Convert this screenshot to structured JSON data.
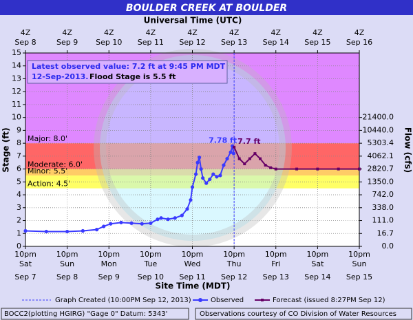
{
  "chart_data": {
    "type": "line",
    "title": "BOULDER CREEK AT BOULDER",
    "top_axis_label": "Universal Time (UTC)",
    "xlabel": "Site Time (MDT)",
    "ylabel": "Stage (ft)",
    "y2label": "Flow (cfs)",
    "xlim": [
      "2013-09-07T22:00",
      "2013-09-15T22:00"
    ],
    "ylim": [
      0,
      15
    ],
    "yticks": [
      0,
      1,
      2,
      3,
      4,
      5,
      6,
      7,
      8,
      9,
      10,
      11,
      12,
      13,
      14,
      15
    ],
    "y2ticks": [
      {
        "value": 0,
        "label": "0.0"
      },
      {
        "value": 1,
        "label": "16.7"
      },
      {
        "value": 2,
        "label": "111.0"
      },
      {
        "value": 3,
        "label": "338.0"
      },
      {
        "value": 4,
        "label": "742.0"
      },
      {
        "value": 5,
        "label": "1350.0"
      },
      {
        "value": 6,
        "label": "2820.7"
      },
      {
        "value": 7,
        "label": "4062.1"
      },
      {
        "value": 8,
        "label": "5303.4"
      },
      {
        "value": 9,
        "label": "10440.0"
      },
      {
        "value": 10,
        "label": "21400.0"
      }
    ],
    "xticks": [
      {
        "value": "2013-09-07T22:00",
        "label": "10pm",
        "day": "Sat",
        "date": "Sep 7"
      },
      {
        "value": "2013-09-08T22:00",
        "label": "10pm",
        "day": "Sun",
        "date": "Sep 8"
      },
      {
        "value": "2013-09-09T22:00",
        "label": "10pm",
        "day": "Mon",
        "date": "Sep 9"
      },
      {
        "value": "2013-09-10T22:00",
        "label": "10pm",
        "day": "Tue",
        "date": "Sep 10"
      },
      {
        "value": "2013-09-11T22:00",
        "label": "10pm",
        "day": "Wed",
        "date": "Sep 11"
      },
      {
        "value": "2013-09-12T22:00",
        "label": "10pm",
        "day": "Thu",
        "date": "Sep 12"
      },
      {
        "value": "2013-09-13T22:00",
        "label": "10pm",
        "day": "Fri",
        "date": "Sep 13"
      },
      {
        "value": "2013-09-14T22:00",
        "label": "10pm",
        "day": "Sat",
        "date": "Sep 14"
      },
      {
        "value": "2013-09-15T22:00",
        "label": "10pm",
        "day": "Sun",
        "date": "Sep 15"
      }
    ],
    "top_ticks": [
      {
        "label": "4Z",
        "date": "Sep 8"
      },
      {
        "label": "4Z",
        "date": "Sep 9"
      },
      {
        "label": "4Z",
        "date": "Sep 10"
      },
      {
        "label": "4Z",
        "date": "Sep 11"
      },
      {
        "label": "4Z",
        "date": "Sep 12"
      },
      {
        "label": "4Z",
        "date": "Sep 13"
      },
      {
        "label": "4Z",
        "date": "Sep 14"
      },
      {
        "label": "4Z",
        "date": "Sep 15"
      },
      {
        "label": "4Z",
        "date": "Sep 16"
      }
    ],
    "grid": true,
    "flood_categories": [
      {
        "label": "Action: 4.5'",
        "value": 4.5,
        "color": "#ffff66"
      },
      {
        "label": "Minor: 5.5'",
        "value": 5.5,
        "color": "#ffcc66"
      },
      {
        "label": "Moderate: 6.0'",
        "value": 6.0,
        "color": "#ff6666"
      },
      {
        "label": "Major: 8.0'",
        "value": 8.0,
        "color": "#df88ff"
      }
    ],
    "series": [
      {
        "name": "Observed",
        "color": "#3a3aff",
        "x": [
          "2013-09-07T22:00",
          "2013-09-08T10:00",
          "2013-09-08T22:00",
          "2013-09-09T07:00",
          "2013-09-09T15:00",
          "2013-09-09T19:00",
          "2013-09-09T23:00",
          "2013-09-10T05:00",
          "2013-09-10T11:00",
          "2013-09-10T17:00",
          "2013-09-10T22:00",
          "2013-09-11T02:00",
          "2013-09-11T04:00",
          "2013-09-11T08:00",
          "2013-09-11T12:00",
          "2013-09-11T16:00",
          "2013-09-11T19:00",
          "2013-09-11T21:00",
          "2013-09-11T22:00",
          "2013-09-12T00:00",
          "2013-09-12T01:00",
          "2013-09-12T02:00",
          "2013-09-12T03:00",
          "2013-09-12T04:00",
          "2013-09-12T06:00",
          "2013-09-12T08:00",
          "2013-09-12T10:00",
          "2013-09-12T12:00",
          "2013-09-12T14:00",
          "2013-09-12T16:00",
          "2013-09-12T18:00",
          "2013-09-12T20:00",
          "2013-09-12T21:00",
          "2013-09-12T21:45"
        ],
        "values": [
          1.2,
          1.15,
          1.15,
          1.2,
          1.3,
          1.55,
          1.75,
          1.85,
          1.8,
          1.75,
          1.8,
          2.1,
          2.2,
          2.1,
          2.2,
          2.4,
          2.9,
          3.6,
          4.6,
          5.6,
          6.5,
          6.9,
          6.0,
          5.3,
          4.9,
          5.2,
          5.6,
          5.4,
          5.5,
          6.3,
          6.8,
          7.3,
          7.78,
          7.2
        ]
      },
      {
        "name": "Forecast (issued 8:27PM Sep 12)",
        "color": "#660066",
        "x": [
          "2013-09-12T22:00",
          "2013-09-13T01:00",
          "2013-09-13T04:00",
          "2013-09-13T07:00",
          "2013-09-13T10:00",
          "2013-09-13T13:00",
          "2013-09-13T16:00",
          "2013-09-13T19:00",
          "2013-09-13T22:00",
          "2013-09-14T10:00",
          "2013-09-14T22:00",
          "2013-09-15T10:00",
          "2013-09-15T22:00"
        ],
        "values": [
          7.7,
          6.8,
          6.4,
          6.8,
          7.2,
          6.8,
          6.3,
          6.1,
          6.0,
          6.0,
          6.0,
          6.0,
          6.0
        ]
      }
    ],
    "graph_created": {
      "x": "2013-09-12T22:00",
      "label": "Graph Created (10:00PM Sep 12, 2013)",
      "color": "#3a3aff"
    },
    "annotations": [
      {
        "text": "7.78 ft",
        "x": "2013-09-12T21:00",
        "y": 7.78,
        "color": "#3a3aff"
      },
      {
        "text": "7.7 ft",
        "x": "2013-09-12T22:00",
        "y": 7.7,
        "color": "#660066"
      }
    ],
    "info": {
      "observed": [
        "Latest observed value: 7.2 ft at 9:45 PM MDT",
        "12-Sep-2013."
      ],
      "flood_stage": "Flood Stage is 5.5 ft"
    },
    "footer": {
      "left": "BOCC2(plotting HGIRG) \"Gage 0\" Datum: 5343'",
      "right": "Observations courtesy of CO Division of Water Resources"
    }
  }
}
